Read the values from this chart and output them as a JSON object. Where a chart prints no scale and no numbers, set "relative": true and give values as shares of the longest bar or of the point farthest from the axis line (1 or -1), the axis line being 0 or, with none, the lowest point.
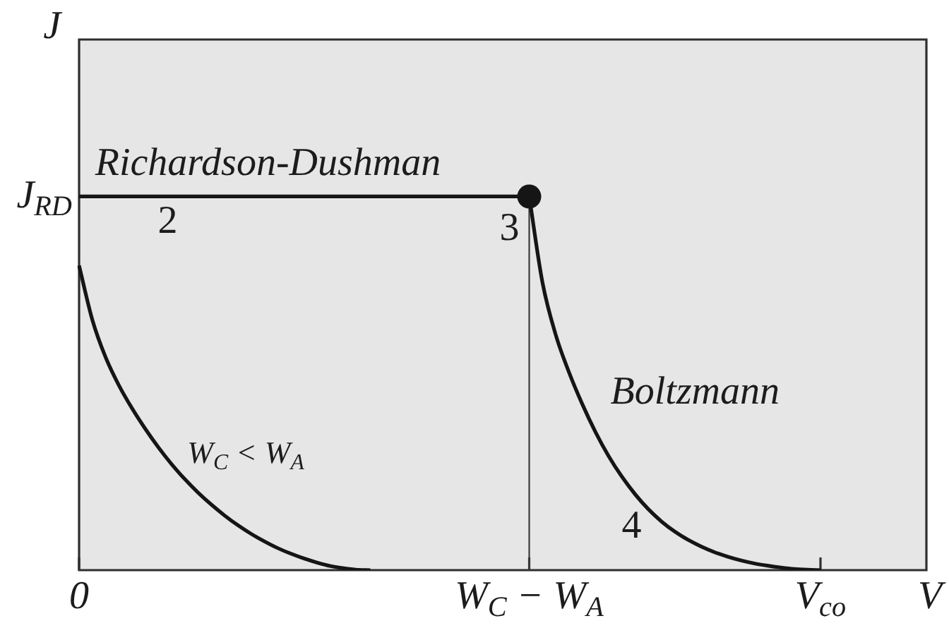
{
  "chart_data": {
    "type": "line",
    "relative": true,
    "xlabel": "V",
    "ylabel": "J",
    "categories": [
      "0",
      null,
      null,
      null,
      null,
      null,
      null,
      null,
      null,
      null,
      null,
      null,
      null,
      null,
      null,
      null,
      null,
      null,
      null,
      null,
      null,
      null,
      null,
      null,
      null,
      null,
      null,
      null,
      null,
      null,
      null,
      null,
      null,
      null,
      "W$_{C}$ − W$_{A}$",
      null,
      null,
      null,
      null,
      null,
      null,
      null,
      null,
      null,
      null,
      null,
      null,
      null,
      null,
      null,
      null,
      null,
      null,
      null,
      null,
      null,
      "V$_{co}$",
      null,
      null,
      null,
      null,
      null,
      null,
      null,
      null
    ],
    "series": [
      {
        "name": "W$_{C}$ < W$_{A}$",
        "color": "#151515",
        "values": [
          0.815,
          0.67,
          0.57,
          0.495,
          0.433,
          0.378,
          0.328,
          0.283,
          0.243,
          0.207,
          0.175,
          0.146,
          0.12,
          0.097,
          0.077,
          0.059,
          0.044,
          0.031,
          0.02,
          0.011,
          0.005,
          0.001,
          0,
          null,
          null,
          null,
          null,
          null,
          null,
          null,
          null,
          null,
          null,
          null,
          null,
          null,
          null,
          null,
          null,
          null,
          null,
          null,
          null,
          null,
          null,
          null,
          null,
          null,
          null,
          null,
          null,
          null,
          null,
          null,
          null,
          null,
          null,
          null,
          null,
          null,
          null,
          null,
          null,
          null,
          null
        ]
      },
      {
        "name": "Richardson-Dushman",
        "color": "#151515",
        "values": [
          1,
          1,
          1,
          1,
          1,
          1,
          1,
          1,
          1,
          1,
          1,
          1,
          1,
          1,
          1,
          1,
          1,
          1,
          1,
          1,
          1,
          1,
          1,
          1,
          1,
          1,
          1,
          1,
          1,
          1,
          1,
          1,
          1,
          1,
          1,
          null,
          null,
          null,
          null,
          null,
          null,
          null,
          null,
          null,
          null,
          null,
          null,
          null,
          null,
          null,
          null,
          null,
          null,
          null,
          null,
          null,
          null,
          null,
          null,
          null,
          null,
          null,
          null,
          null,
          null
        ]
      },
      {
        "name": "Boltzmann",
        "color": "#151515",
        "values": [
          null,
          null,
          null,
          null,
          null,
          null,
          null,
          null,
          null,
          null,
          null,
          null,
          null,
          null,
          null,
          null,
          null,
          null,
          null,
          null,
          null,
          null,
          null,
          null,
          null,
          null,
          null,
          null,
          null,
          null,
          null,
          null,
          null,
          null,
          1,
          0.77,
          0.63,
          0.53,
          0.445,
          0.37,
          0.305,
          0.25,
          0.203,
          0.163,
          0.13,
          0.103,
          0.081,
          0.063,
          0.048,
          0.036,
          0.026,
          0.018,
          0.012,
          0.007,
          0.003,
          0.001,
          0,
          null,
          null,
          null,
          null,
          null,
          null,
          null,
          null
        ]
      },
      {
        "type": "scatter",
        "color": "#151515",
        "marker": "circle",
        "values": [
          null,
          null,
          null,
          null,
          null,
          null,
          null,
          null,
          null,
          null,
          null,
          null,
          null,
          null,
          null,
          null,
          null,
          null,
          null,
          null,
          null,
          null,
          null,
          null,
          null,
          null,
          null,
          null,
          null,
          null,
          null,
          null,
          null,
          null,
          1,
          null,
          null,
          null,
          null,
          null,
          null,
          null,
          null,
          null,
          null,
          null,
          null,
          null,
          null,
          null,
          null,
          null,
          null,
          null,
          null,
          null,
          null,
          null,
          null,
          null,
          null,
          null,
          null,
          null,
          null
        ]
      }
    ],
    "ref_lines": [
      {
        "axis": "x",
        "value": "W$_{C}$ − W$_{A}$",
        "color": "#3a3a3a"
      }
    ],
    "annotations": [
      "2",
      {
        "text": "3",
        "x": "W$_{C}$ − W$_{A}$",
        "y": 1
      },
      "4",
      "J$_{RD}$"
    ]
  }
}
